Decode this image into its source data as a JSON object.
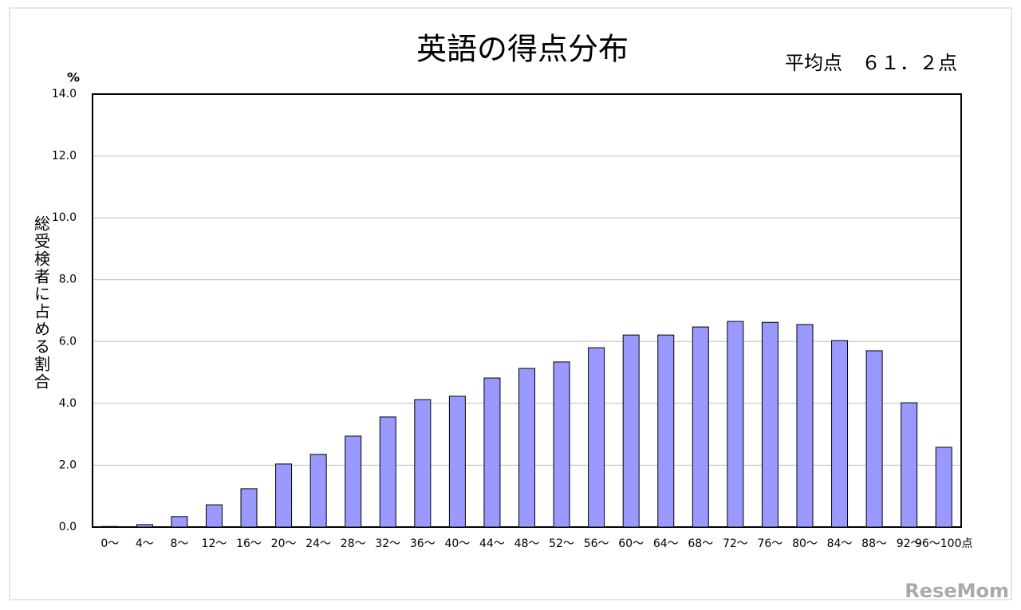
{
  "chart_data": {
    "type": "bar",
    "title": "英語の得点分布",
    "annotation": "平均点　６１．２点",
    "y_label": "総受検者に占める割合",
    "y_unit": "%",
    "watermark": "ReseMom",
    "categories": [
      "0〜",
      "4〜",
      "8〜",
      "12〜",
      "16〜",
      "20〜",
      "24〜",
      "28〜",
      "32〜",
      "36〜",
      "40〜",
      "44〜",
      "48〜",
      "52〜",
      "56〜",
      "60〜",
      "64〜",
      "68〜",
      "72〜",
      "76〜",
      "80〜",
      "84〜",
      "88〜",
      "92〜",
      "96〜100点"
    ],
    "values": [
      0.02,
      0.08,
      0.34,
      0.72,
      1.24,
      2.04,
      2.35,
      2.94,
      3.56,
      4.12,
      4.23,
      4.82,
      5.13,
      5.34,
      5.8,
      6.21,
      6.21,
      6.47,
      6.65,
      6.62,
      6.55,
      6.03,
      5.7,
      4.02,
      2.58
    ],
    "color": "#9999ff",
    "ylim": [
      0,
      14
    ],
    "yticks": [
      {
        "value": 0,
        "label": "0.0"
      },
      {
        "value": 2,
        "label": "2.0"
      },
      {
        "value": 4,
        "label": "4.0"
      },
      {
        "value": 6,
        "label": "6.0"
      },
      {
        "value": 8,
        "label": "8.0"
      },
      {
        "value": 10,
        "label": "10.0"
      },
      {
        "value": 12,
        "label": "12.0"
      },
      {
        "value": 14,
        "label": "14.0"
      }
    ],
    "grid": true
  }
}
